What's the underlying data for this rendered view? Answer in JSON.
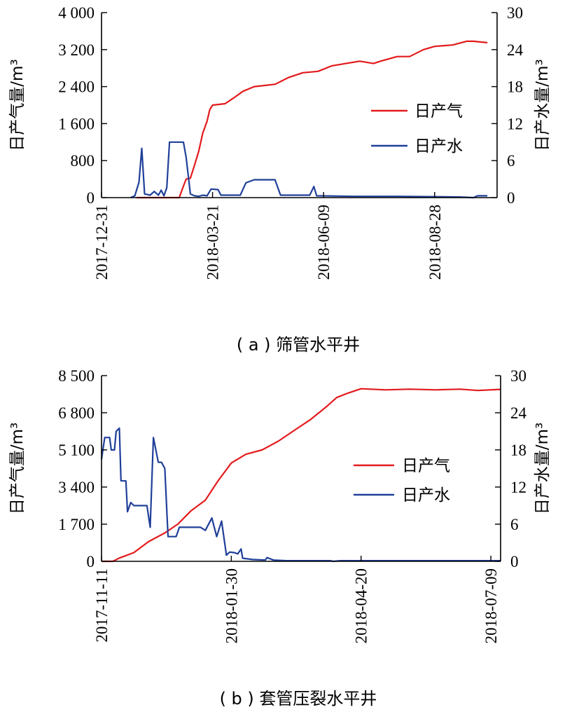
{
  "chart_data": [
    {
      "type": "line",
      "caption": "( a ) 筛管水平井",
      "ylabel_left": "日产气量/m³",
      "ylabel_right": "日产水量/m³",
      "x_ticks": [
        "2017-12-31",
        "2018-03-21",
        "2018-06-09",
        "2018-08-28"
      ],
      "y_left_ticks": [
        "0",
        "800",
        "1 600",
        "2 400",
        "3 200",
        "4 000"
      ],
      "y_right_ticks": [
        "0",
        "6",
        "12",
        "18",
        "24",
        "30"
      ],
      "y_left_lim": [
        0,
        4000
      ],
      "y_right_lim": [
        0,
        30
      ],
      "x_range": [
        "2017-12-31",
        "2018-10-12"
      ],
      "legend_position": "right",
      "series": [
        {
          "name": "日产气",
          "axis": "left",
          "color": "#e31a1c",
          "points": [
            [
              "2018-01-25",
              0
            ],
            [
              "2018-02-05",
              0
            ],
            [
              "2018-02-20",
              0
            ],
            [
              "2018-02-25",
              0
            ],
            [
              "2018-02-28",
              250
            ],
            [
              "2018-03-02",
              400
            ],
            [
              "2018-03-05",
              420
            ],
            [
              "2018-03-08",
              700
            ],
            [
              "2018-03-11",
              1000
            ],
            [
              "2018-03-14",
              1400
            ],
            [
              "2018-03-17",
              1650
            ],
            [
              "2018-03-19",
              1900
            ],
            [
              "2018-03-21",
              2000
            ],
            [
              "2018-03-30",
              2030
            ],
            [
              "2018-04-05",
              2150
            ],
            [
              "2018-04-12",
              2300
            ],
            [
              "2018-04-20",
              2400
            ],
            [
              "2018-05-05",
              2450
            ],
            [
              "2018-05-15",
              2600
            ],
            [
              "2018-05-25",
              2700
            ],
            [
              "2018-06-05",
              2730
            ],
            [
              "2018-06-15",
              2850
            ],
            [
              "2018-06-25",
              2900
            ],
            [
              "2018-07-05",
              2950
            ],
            [
              "2018-07-15",
              2900
            ],
            [
              "2018-07-20",
              2950
            ],
            [
              "2018-08-01",
              3050
            ],
            [
              "2018-08-10",
              3050
            ],
            [
              "2018-08-20",
              3200
            ],
            [
              "2018-08-28",
              3270
            ],
            [
              "2018-09-10",
              3300
            ],
            [
              "2018-09-20",
              3380
            ],
            [
              "2018-09-25",
              3380
            ],
            [
              "2018-10-05",
              3350
            ]
          ]
        },
        {
          "name": "日产水",
          "axis": "right",
          "color": "#1f3f99",
          "points": [
            [
              "2018-01-21",
              0
            ],
            [
              "2018-01-24",
              0.3
            ],
            [
              "2018-01-27",
              2.5
            ],
            [
              "2018-01-29",
              8
            ],
            [
              "2018-01-31",
              0.6
            ],
            [
              "2018-02-04",
              0.4
            ],
            [
              "2018-02-07",
              1.0
            ],
            [
              "2018-02-10",
              0.4
            ],
            [
              "2018-02-12",
              1.2
            ],
            [
              "2018-02-14",
              0.3
            ],
            [
              "2018-02-16",
              1.6
            ],
            [
              "2018-02-18",
              9
            ],
            [
              "2018-02-28",
              9
            ],
            [
              "2018-03-02",
              6.5
            ],
            [
              "2018-03-05",
              0.6
            ],
            [
              "2018-03-08",
              0.3
            ],
            [
              "2018-03-11",
              0.2
            ],
            [
              "2018-03-14",
              0.4
            ],
            [
              "2018-03-17",
              0.3
            ],
            [
              "2018-03-20",
              1.4
            ],
            [
              "2018-03-25",
              1.3
            ],
            [
              "2018-03-27",
              0.4
            ],
            [
              "2018-04-10",
              0.4
            ],
            [
              "2018-04-14",
              2.4
            ],
            [
              "2018-04-20",
              2.9
            ],
            [
              "2018-05-05",
              2.9
            ],
            [
              "2018-05-09",
              0.4
            ],
            [
              "2018-05-30",
              0.4
            ],
            [
              "2018-06-02",
              1.8
            ],
            [
              "2018-06-04",
              0.3
            ],
            [
              "2018-07-01",
              0.2
            ],
            [
              "2018-08-01",
              0.2
            ],
            [
              "2018-09-15",
              0.1
            ],
            [
              "2018-09-25",
              0
            ],
            [
              "2018-09-28",
              0.3
            ],
            [
              "2018-10-05",
              0.3
            ]
          ]
        }
      ]
    },
    {
      "type": "line",
      "caption": "( b ) 套管压裂水平井",
      "ylabel_left": "日产气量/m³",
      "ylabel_right": "日产水量/m³",
      "x_ticks": [
        "2017-11-11",
        "2018-01-30",
        "2018-04-20",
        "2018-07-09"
      ],
      "y_left_ticks": [
        "0",
        "1 700",
        "3 400",
        "5 100",
        "6 800",
        "8 500"
      ],
      "y_right_ticks": [
        "0",
        "6",
        "12",
        "18",
        "24",
        "30"
      ],
      "y_left_lim": [
        0,
        8500
      ],
      "y_right_lim": [
        0,
        30
      ],
      "x_range": [
        "2017-11-11",
        "2018-07-15"
      ],
      "legend_position": "right",
      "series": [
        {
          "name": "日产气",
          "axis": "left",
          "color": "#e31a1c",
          "points": [
            [
              "2017-11-11",
              0
            ],
            [
              "2017-11-18",
              0
            ],
            [
              "2017-11-22",
              150
            ],
            [
              "2017-12-01",
              400
            ],
            [
              "2017-12-10",
              900
            ],
            [
              "2017-12-20",
              1300
            ],
            [
              "2017-12-28",
              1700
            ],
            [
              "2018-01-05",
              2300
            ],
            [
              "2018-01-14",
              2800
            ],
            [
              "2018-01-22",
              3700
            ],
            [
              "2018-01-30",
              4500
            ],
            [
              "2018-02-08",
              4900
            ],
            [
              "2018-02-18",
              5100
            ],
            [
              "2018-02-28",
              5500
            ],
            [
              "2018-03-10",
              6000
            ],
            [
              "2018-03-20",
              6500
            ],
            [
              "2018-03-30",
              7100
            ],
            [
              "2018-04-05",
              7500
            ],
            [
              "2018-04-12",
              7700
            ],
            [
              "2018-04-20",
              7900
            ],
            [
              "2018-05-05",
              7850
            ],
            [
              "2018-05-20",
              7880
            ],
            [
              "2018-06-05",
              7850
            ],
            [
              "2018-06-20",
              7880
            ],
            [
              "2018-07-01",
              7820
            ],
            [
              "2018-07-15",
              7870
            ]
          ]
        },
        {
          "name": "日产水",
          "axis": "right",
          "color": "#1f3f99",
          "points": [
            [
              "2017-11-11",
              16.5
            ],
            [
              "2017-11-13",
              20
            ],
            [
              "2017-11-16",
              20
            ],
            [
              "2017-11-17",
              18
            ],
            [
              "2017-11-19",
              18
            ],
            [
              "2017-11-20",
              21
            ],
            [
              "2017-11-22",
              21.5
            ],
            [
              "2017-11-23",
              13
            ],
            [
              "2017-11-26",
              13
            ],
            [
              "2017-11-27",
              8
            ],
            [
              "2017-11-29",
              9.5
            ],
            [
              "2017-12-01",
              9
            ],
            [
              "2017-12-09",
              9
            ],
            [
              "2017-12-11",
              5.5
            ],
            [
              "2017-12-13",
              20
            ],
            [
              "2017-12-16",
              16
            ],
            [
              "2017-12-18",
              16
            ],
            [
              "2017-12-20",
              15
            ],
            [
              "2017-12-22",
              4
            ],
            [
              "2017-12-27",
              4
            ],
            [
              "2017-12-29",
              5.5
            ],
            [
              "2018-01-11",
              5.5
            ],
            [
              "2018-01-14",
              5
            ],
            [
              "2018-01-18",
              7
            ],
            [
              "2018-01-21",
              4
            ],
            [
              "2018-01-24",
              6.5
            ],
            [
              "2018-01-27",
              1
            ],
            [
              "2018-01-29",
              1.5
            ],
            [
              "2018-02-01",
              1.4
            ],
            [
              "2018-02-03",
              1.2
            ],
            [
              "2018-02-05",
              2
            ],
            [
              "2018-02-06",
              0.5
            ],
            [
              "2018-02-12",
              0.3
            ],
            [
              "2018-02-20",
              0.2
            ],
            [
              "2018-02-21",
              0.6
            ],
            [
              "2018-02-25",
              0.2
            ],
            [
              "2018-03-05",
              0.1
            ],
            [
              "2018-04-01",
              0.1
            ],
            [
              "2018-04-03",
              0
            ],
            [
              "2018-04-07",
              0.1
            ],
            [
              "2018-05-01",
              0.1
            ],
            [
              "2018-06-01",
              0.1
            ],
            [
              "2018-07-15",
              0.1
            ]
          ]
        }
      ]
    }
  ]
}
